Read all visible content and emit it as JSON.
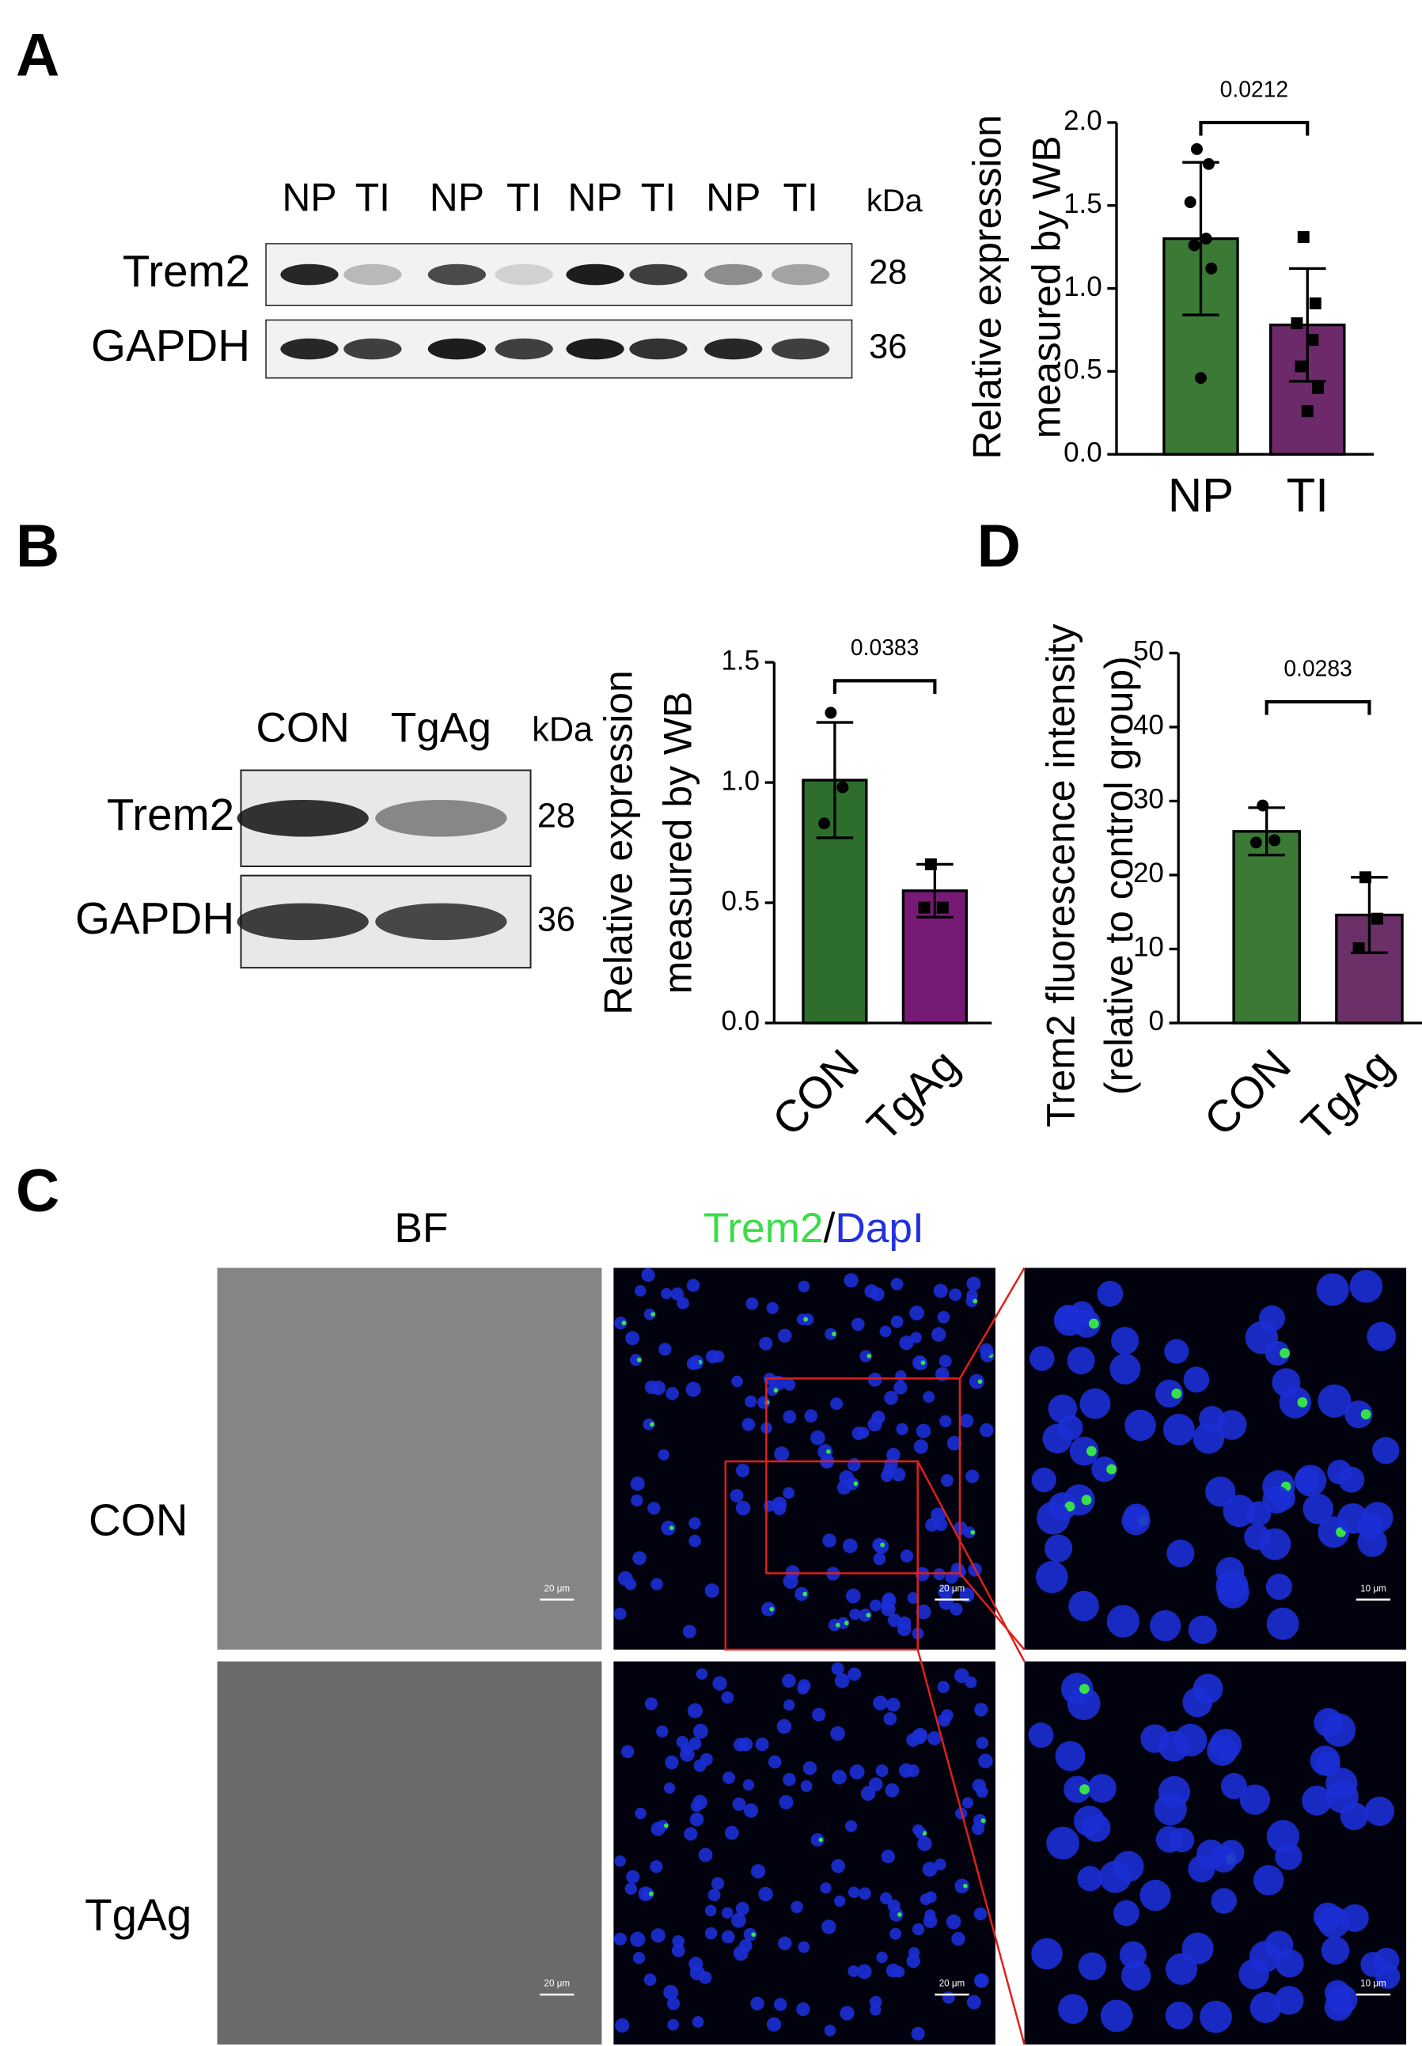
{
  "figure": {
    "panel_labels": [
      "A",
      "B",
      "C",
      "D"
    ],
    "blot_a": {
      "lanes": [
        "NP",
        "TI",
        "NP",
        "TI",
        "NP",
        "TI",
        "NP",
        "TI"
      ],
      "unit": "kDa",
      "rows": [
        {
          "name": "Trem2",
          "kda": 28
        },
        {
          "name": "GAPDH",
          "kda": 36
        }
      ]
    },
    "blot_b": {
      "lanes": [
        "CON",
        "TgAg"
      ],
      "unit": "kDa",
      "rows": [
        {
          "name": "Trem2",
          "kda": 28
        },
        {
          "name": "GAPDH",
          "kda": 36
        }
      ]
    },
    "microscopy": {
      "bf_header": "BF",
      "marker": "Trem2",
      "separator": "/",
      "nucleus": "DapI",
      "rows": [
        "CON",
        "TgAg"
      ],
      "scale_main": "20 μm",
      "scale_zoom": "10 μm"
    }
  },
  "chart_data": [
    {
      "type": "bar",
      "categories": [
        "NP",
        "TI"
      ],
      "values": [
        1.3,
        0.78
      ],
      "errors": [
        0.46,
        0.34
      ],
      "points": [
        [
          1.84,
          1.75,
          1.52,
          1.3,
          1.26,
          1.12,
          0.46
        ],
        [
          1.31,
          0.91,
          0.79,
          0.69,
          0.53,
          0.4,
          0.26
        ]
      ],
      "colors": [
        "#3b7a35",
        "#6d2a6b"
      ],
      "ylabel": [
        "Relative expression",
        "measured by WB"
      ],
      "annotation": "0.0212",
      "ylim": [
        0,
        2
      ],
      "yticks": [
        {
          "value": 0,
          "label": "0.0"
        },
        0.5,
        {
          "value": 1,
          "label": "1.0"
        },
        1.5,
        {
          "value": 2,
          "label": "2.0"
        }
      ]
    },
    {
      "type": "bar",
      "categories": [
        "CON",
        "TgAg"
      ],
      "values": [
        1.01,
        0.55
      ],
      "errors": [
        0.24,
        0.11
      ],
      "points": [
        [
          1.29,
          0.98,
          0.83
        ],
        [
          0.66,
          0.48,
          0.48
        ]
      ],
      "colors": [
        "#2d6e2d",
        "#771a75"
      ],
      "ylabel": [
        "Relative expression",
        "measured by WB"
      ],
      "annotation": "0.0383",
      "ylim": [
        0,
        1.5
      ],
      "yticks": [
        {
          "value": 0,
          "label": "0.0"
        },
        0.5,
        {
          "value": 1,
          "label": "1.0"
        },
        1.5
      ]
    },
    {
      "type": "bar",
      "categories": [
        "CON",
        "TgAg"
      ],
      "values": [
        25.9,
        14.6
      ],
      "errors": [
        3.2,
        5.1
      ],
      "points": [
        [
          29.4,
          24.7,
          24.4
        ],
        [
          19.7,
          14.1,
          10.1
        ]
      ],
      "colors": [
        "#3b7a35",
        "#6b3068"
      ],
      "ylabel": [
        "Trem2 fluorescence intensity",
        "(relative to control group)"
      ],
      "annotation": "0.0283",
      "ylim": [
        0,
        50
      ],
      "yticks": [
        0,
        10,
        20,
        30,
        40,
        50
      ]
    }
  ]
}
